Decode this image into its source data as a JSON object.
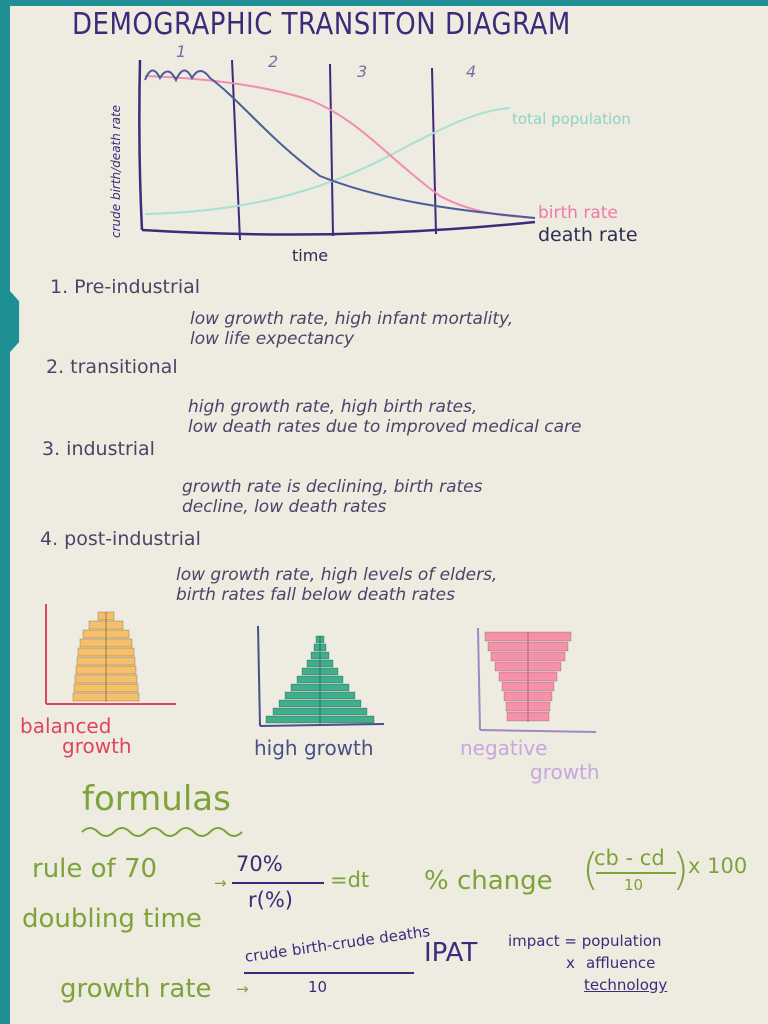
{
  "title": "DEMOGRAPHIC TRANSITON DIAGRAM",
  "chart": {
    "stage_numbers": [
      "1",
      "2",
      "3",
      "4"
    ],
    "y_axis_label": "crude birth/death rate",
    "x_axis_label": "time",
    "line_labels": {
      "total": "total population",
      "birth": "birth rate",
      "death": "death rate"
    },
    "colors": {
      "total": "#a8e0d4",
      "birth": "#f08db0",
      "death": "#4b5c9a",
      "axis": "#3d2a7a"
    }
  },
  "stages": [
    {
      "heading": "1. Pre-industrial",
      "desc_line1": "low growth rate, high infant mortality,",
      "desc_line2": "low life expectancy"
    },
    {
      "heading": "2. transitional",
      "desc_line1": "high growth rate, high birth rates,",
      "desc_line2": "low death rates due to improved medical care"
    },
    {
      "heading": "3. industrial",
      "desc_line1": "growth rate is declining, birth rates",
      "desc_line2": "decline, low death rates"
    },
    {
      "heading": "4. post-industrial",
      "desc_line1": "low growth rate, high levels of elders,",
      "desc_line2": "birth rates fall below death rates"
    }
  ],
  "pyramids": [
    {
      "label_line1": "balanced",
      "label_line2": "growth",
      "fill": "#f6c06a",
      "label_color": "#e0455a"
    },
    {
      "label_line1": "high growth",
      "fill": "#3fae8c",
      "label_color": "#4a4f8a"
    },
    {
      "label_line1": "negative",
      "label_line2": "growth",
      "fill": "#f592aa",
      "label_color": "#c8a6e0"
    }
  ],
  "formulas": {
    "heading": "formulas",
    "rule70": {
      "label": "rule of 70",
      "numerator": "70%",
      "denominator": "r(%)",
      "result": "=dt"
    },
    "doubling": "doubling time",
    "pct_change": {
      "label": "% change",
      "numerator": "cb - cd",
      "denominator": "10",
      "suffix": "x 100"
    },
    "growth_rate": {
      "label": "growth rate",
      "numerator": "crude birth-crude deaths",
      "denominator": "10"
    },
    "ipat": {
      "label": "IPAT",
      "line1": "impact = population",
      "line2": "affluence",
      "line3": "technology"
    }
  }
}
